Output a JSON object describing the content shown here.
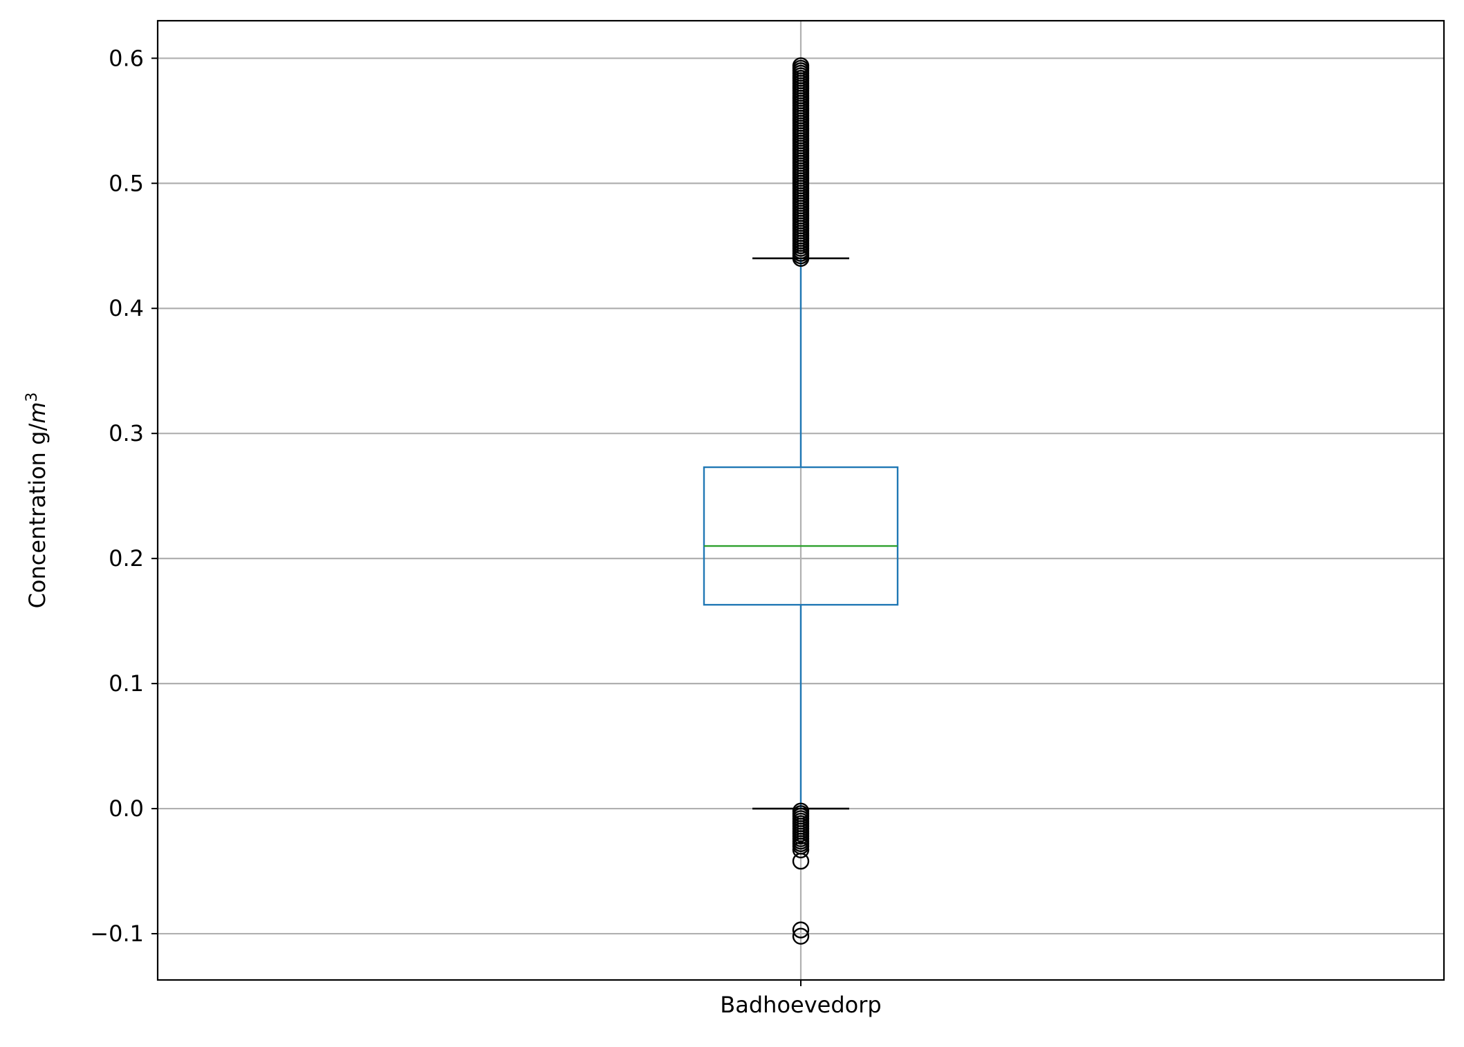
{
  "chart_data": {
    "type": "box",
    "categories": [
      "Badhoevedorp"
    ],
    "ylabel": "Concentration g/m³",
    "ylabel_parts": {
      "prefix": "Concentration g/",
      "unit": "m",
      "exponent": "3"
    },
    "ylim": [
      -0.137,
      0.63
    ],
    "yticks": [
      -0.1,
      0.0,
      0.1,
      0.2,
      0.3,
      0.4,
      0.5,
      0.6
    ],
    "ytick_labels": [
      "−0.1",
      "0.0",
      "0.1",
      "0.2",
      "0.3",
      "0.4",
      "0.5",
      "0.6"
    ],
    "grid": true,
    "boxes": [
      {
        "category": "Badhoevedorp",
        "q1": 0.163,
        "median": 0.21,
        "q3": 0.273,
        "whisker_low": 0.0,
        "whisker_high": 0.44,
        "outliers_high_range": [
          0.44,
          0.595
        ],
        "outliers_low_range": [
          -0.03,
          -0.002
        ],
        "outliers_low_isolated": [
          -0.033,
          -0.042,
          -0.097,
          -0.102
        ]
      }
    ],
    "colors": {
      "box": "#1f77b4",
      "median": "#2ca02c",
      "whisker_cap": "#000000",
      "outlier": "#000000",
      "grid": "#b0b0b0"
    }
  }
}
